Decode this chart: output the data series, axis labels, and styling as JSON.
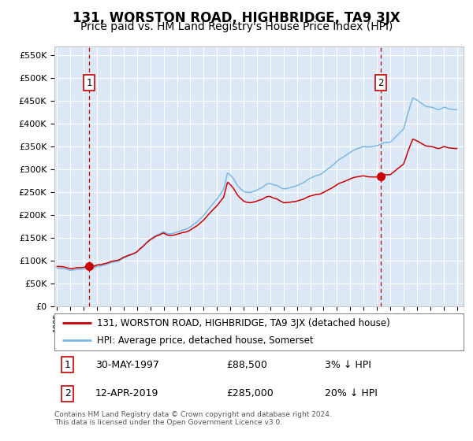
{
  "title": "131, WORSTON ROAD, HIGHBRIDGE, TA9 3JX",
  "subtitle": "Price paid vs. HM Land Registry's House Price Index (HPI)",
  "title_fontsize": 12,
  "subtitle_fontsize": 10,
  "background_color": "#ffffff",
  "plot_bg_color": "#dce8f5",
  "grid_color": "#ffffff",
  "ylim": [
    0,
    570000
  ],
  "yticks": [
    0,
    50000,
    100000,
    150000,
    200000,
    250000,
    300000,
    350000,
    400000,
    450000,
    500000,
    550000
  ],
  "ytick_labels": [
    "£0",
    "£50K",
    "£100K",
    "£150K",
    "£200K",
    "£250K",
    "£300K",
    "£350K",
    "£400K",
    "£450K",
    "£500K",
    "£550K"
  ],
  "xlim_start": 1994.8,
  "xlim_end": 2025.5,
  "xticks": [
    1995,
    1996,
    1997,
    1998,
    1999,
    2000,
    2001,
    2002,
    2003,
    2004,
    2005,
    2006,
    2007,
    2008,
    2009,
    2010,
    2011,
    2012,
    2013,
    2014,
    2015,
    2016,
    2017,
    2018,
    2019,
    2020,
    2021,
    2022,
    2023,
    2024,
    2025
  ],
  "hpi_color": "#7ab8e8",
  "price_color": "#cc0000",
  "dashed_line_color": "#cc0000",
  "sale1_date": 1997.41,
  "sale1_price": 88500,
  "sale1_label": "1",
  "sale2_date": 2019.28,
  "sale2_price": 285000,
  "sale2_label": "2",
  "legend_line1": "131, WORSTON ROAD, HIGHBRIDGE, TA9 3JX (detached house)",
  "legend_line2": "HPI: Average price, detached house, Somerset",
  "footnote": "Contains HM Land Registry data © Crown copyright and database right 2024.\nThis data is licensed under the Open Government Licence v3.0.",
  "table_row1_num": "1",
  "table_row1_date": "30-MAY-1997",
  "table_row1_price": "£88,500",
  "table_row1_note": "3% ↓ HPI",
  "table_row2_num": "2",
  "table_row2_date": "12-APR-2019",
  "table_row2_price": "£285,000",
  "table_row2_note": "20% ↓ HPI"
}
